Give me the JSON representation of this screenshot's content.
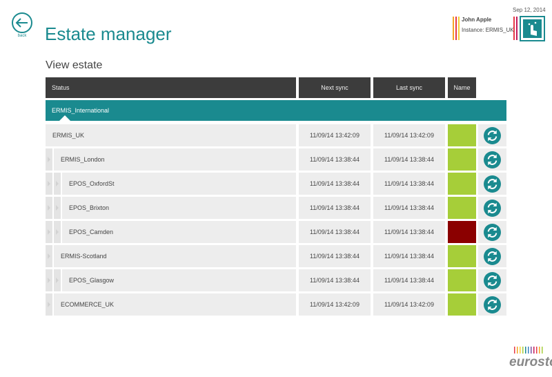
{
  "back": {
    "label": "back"
  },
  "header": {
    "title": "Estate manager",
    "subtitle": "View estate",
    "date": "Sep 12, 2014",
    "user": {
      "name": "John Apple",
      "instance": "Instance: ERMIS_UK"
    }
  },
  "table": {
    "headers": [
      "Status",
      "Next sync",
      "Last sync",
      "Name"
    ],
    "group": "ERMIS_International",
    "rows": [
      {
        "name": "ERMIS_UK",
        "level": 0,
        "next_sync": "11/09/14 13:42:09",
        "last_sync": "11/09/14 13:42:09",
        "color": "#a6ce39"
      },
      {
        "name": "ERMIS_London",
        "level": 1,
        "next_sync": "11/09/14 13:38:44",
        "last_sync": "11/09/14 13:38:44",
        "color": "#a6ce39"
      },
      {
        "name": "EPOS_OxfordSt",
        "level": 2,
        "next_sync": "11/09/14 13:38:44",
        "last_sync": "11/09/14 13:38:44",
        "color": "#a6ce39"
      },
      {
        "name": "EPOS_Brixton",
        "level": 2,
        "next_sync": "11/09/14 13:38:44",
        "last_sync": "11/09/14 13:38:44",
        "color": "#a6ce39"
      },
      {
        "name": "EPOS_Camden",
        "level": 2,
        "next_sync": "11/09/14 13:38:44",
        "last_sync": "11/09/14 13:38:44",
        "color": "#8b0000"
      },
      {
        "name": "ERMIS-Scotland",
        "level": 1,
        "next_sync": "11/09/14 13:38:44",
        "last_sync": "11/09/14 13:38:44",
        "color": "#a6ce39"
      },
      {
        "name": "EPOS_Glasgow",
        "level": 2,
        "next_sync": "11/09/14 13:38:44",
        "last_sync": "11/09/14 13:38:44",
        "color": "#a6ce39"
      },
      {
        "name": "ECOMMERCE_UK",
        "level": 1,
        "next_sync": "11/09/14 13:42:09",
        "last_sync": "11/09/14 13:42:09",
        "color": "#a6ce39"
      }
    ]
  },
  "logo": "eurostop"
}
